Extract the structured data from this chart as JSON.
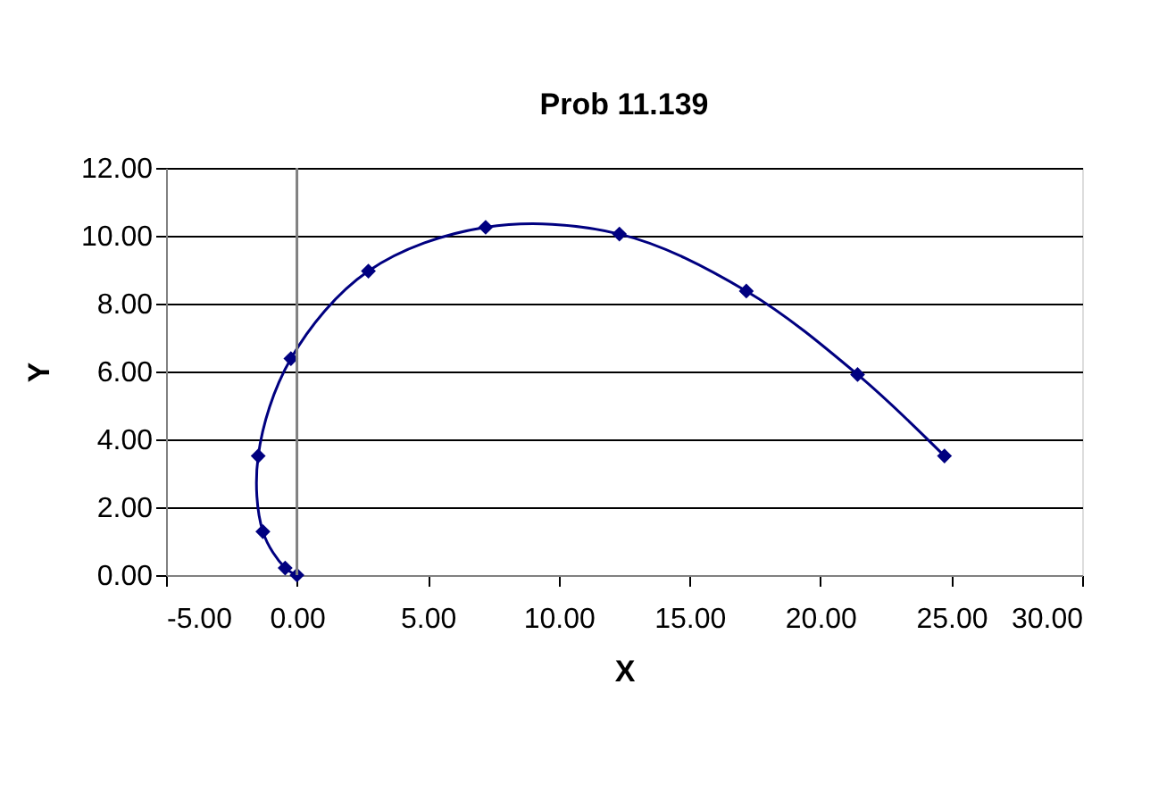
{
  "chart_data": {
    "type": "line",
    "title": "Prob 11.139",
    "xlabel": "X",
    "ylabel": "Y",
    "series": [
      {
        "color": "#000080",
        "x": [
          0.0,
          -0.45,
          -1.3,
          -1.48,
          -0.23,
          2.73,
          7.21,
          12.32,
          17.17,
          21.42,
          24.74
        ],
        "values": [
          0.0,
          0.21,
          1.28,
          3.51,
          6.38,
          8.96,
          10.25,
          10.05,
          8.37,
          5.91,
          3.51
        ]
      }
    ],
    "xlim": [
      -5,
      30
    ],
    "xticks": [
      {
        "value": -5,
        "label": "-5.00"
      },
      {
        "value": 0,
        "label": "0.00"
      },
      {
        "value": 5,
        "label": "5.00"
      },
      {
        "value": 10,
        "label": "10.00"
      },
      {
        "value": 15,
        "label": "15.00"
      },
      {
        "value": 20,
        "label": "20.00"
      },
      {
        "value": 25,
        "label": "25.00"
      },
      {
        "value": 30,
        "label": "30.00"
      }
    ],
    "ylim": [
      0,
      12
    ],
    "yticks": [
      {
        "value": 0,
        "label": "0.00"
      },
      {
        "value": 2,
        "label": "2.00"
      },
      {
        "value": 4,
        "label": "4.00"
      },
      {
        "value": 6,
        "label": "6.00"
      },
      {
        "value": 8,
        "label": "8.00"
      },
      {
        "value": 10,
        "label": "10.00"
      },
      {
        "value": 12,
        "label": "12.00"
      }
    ],
    "ref_lines": [
      {
        "axis": "x",
        "value": 0,
        "color": "#808080"
      }
    ],
    "grid": "y",
    "marker": "diamond",
    "line_style": "solid"
  }
}
